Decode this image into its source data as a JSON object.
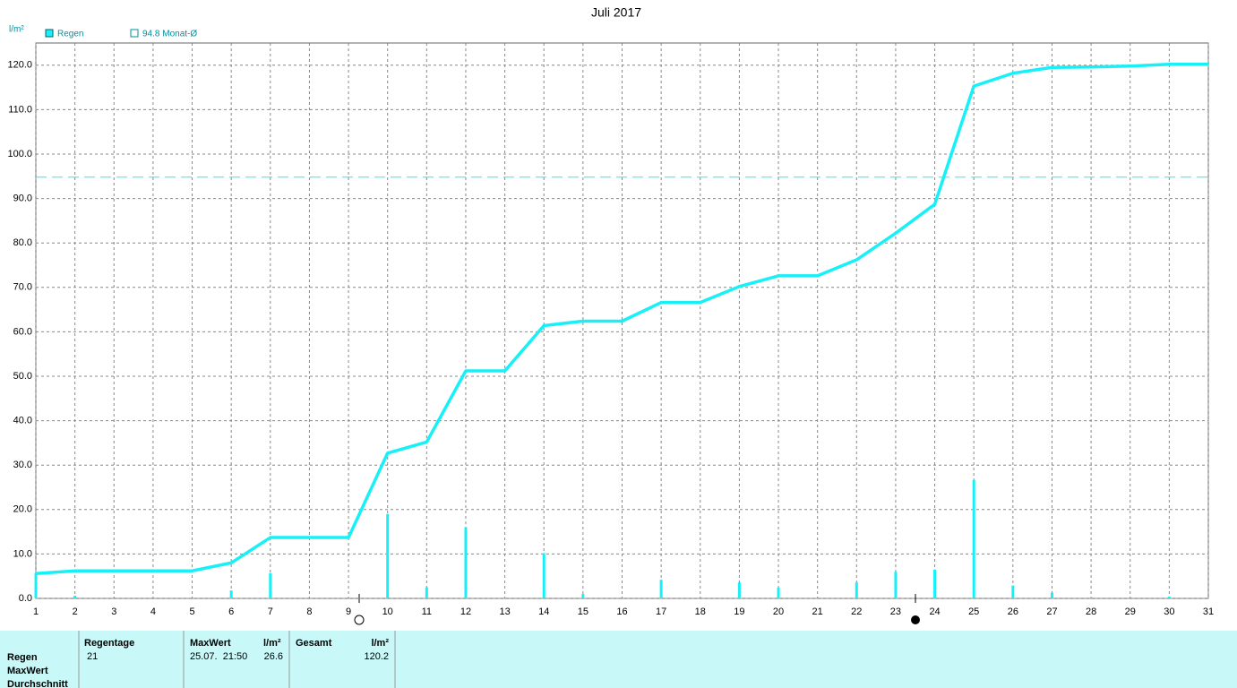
{
  "chart_data": {
    "type": "line",
    "title": "Juli 2017",
    "y_label": "l/m²",
    "x": [
      1,
      2,
      3,
      4,
      5,
      6,
      7,
      8,
      9,
      10,
      11,
      12,
      13,
      14,
      15,
      16,
      17,
      18,
      19,
      20,
      21,
      22,
      23,
      24,
      25,
      26,
      27,
      28,
      29,
      30,
      31
    ],
    "series": [
      {
        "name": "Regen",
        "type": "line",
        "color": "#18f0f8",
        "values": [
          5.6,
          6.2,
          6.2,
          6.2,
          6.2,
          8.0,
          13.7,
          13.7,
          13.7,
          32.7,
          35.2,
          51.2,
          51.2,
          61.4,
          62.4,
          62.4,
          66.6,
          66.6,
          70.2,
          72.6,
          72.6,
          76.2,
          82.2,
          88.7,
          115.3,
          118.2,
          119.5,
          119.6,
          119.8,
          120.2,
          120.2
        ]
      },
      {
        "type": "bar",
        "color": "#18f0f8",
        "values": [
          5.6,
          0.6,
          null,
          null,
          null,
          1.8,
          5.7,
          null,
          null,
          19.0,
          2.5,
          16.0,
          null,
          10.2,
          1.0,
          null,
          4.2,
          null,
          3.6,
          2.4,
          null,
          3.6,
          6.0,
          6.5,
          26.6,
          2.9,
          1.3,
          null,
          null,
          0.4,
          null
        ]
      }
    ],
    "reference": {
      "label": "94.8 Monat-Ø",
      "value": 94.8,
      "color": "#18f0f8"
    },
    "xlim": [
      1,
      31
    ],
    "xticks": [
      1,
      2,
      3,
      4,
      5,
      6,
      7,
      8,
      9,
      10,
      11,
      12,
      13,
      14,
      15,
      16,
      17,
      18,
      19,
      20,
      21,
      22,
      23,
      24,
      25,
      26,
      27,
      28,
      29,
      30,
      31
    ],
    "ylim": [
      0,
      125
    ],
    "yticks": [
      {
        "value": 0,
        "label": "0.0"
      },
      {
        "value": 10,
        "label": "10.0"
      },
      {
        "value": 20,
        "label": "20.0"
      },
      {
        "value": 30,
        "label": "30.0"
      },
      {
        "value": 40,
        "label": "40.0"
      },
      {
        "value": 50,
        "label": "50.0"
      },
      {
        "value": 60,
        "label": "60.0"
      },
      {
        "value": 70,
        "label": "70.0"
      },
      {
        "value": 80,
        "label": "80.0"
      },
      {
        "value": 90,
        "label": "90.0"
      },
      {
        "value": 100,
        "label": "100.0"
      },
      {
        "value": 110,
        "label": "110.0"
      },
      {
        "value": 120,
        "label": "120.0"
      }
    ],
    "grid": true
  },
  "stats": {
    "row_labels": [
      "Regen",
      "MaxWert",
      "Durchschnitt"
    ],
    "headers": [
      "Regentage",
      "MaxWert",
      "l/m²",
      "Gesamt",
      "l/m²"
    ],
    "row": [
      "21",
      "25.07.  21:50",
      "26.6",
      "120.2"
    ]
  }
}
